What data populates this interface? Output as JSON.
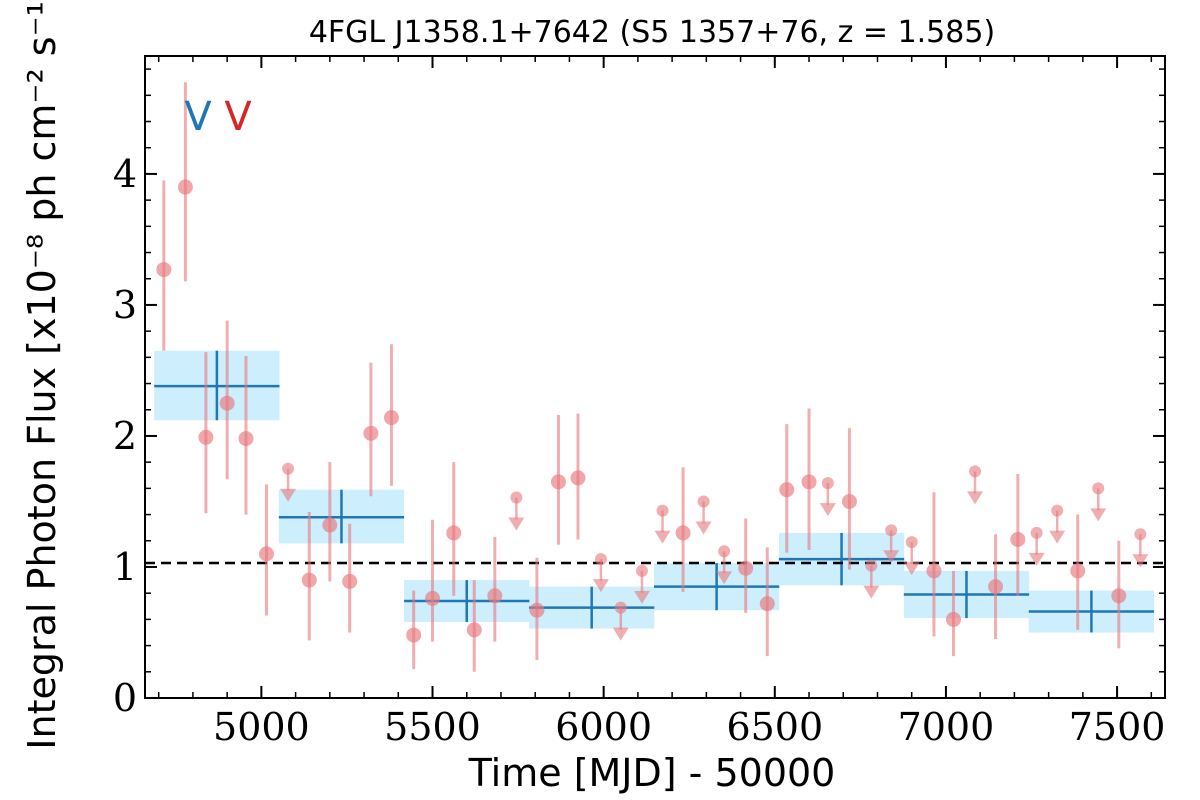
{
  "chart_data": {
    "type": "scatter",
    "title": "4FGL J1358.1+7642 (S5 1357+76, z = 1.585)",
    "xlabel": "Time [MJD] - 50000",
    "ylabel": "Integral Photon Flux [x10⁻⁸ ph cm⁻² s⁻¹]",
    "xlim": [
      4660,
      7640
    ],
    "ylim": [
      0,
      4.9
    ],
    "x_ticks": [
      5000,
      5500,
      6000,
      6500,
      7000,
      7500
    ],
    "y_ticks": [
      0,
      1,
      2,
      3,
      4
    ],
    "reference_line": {
      "value": 1.03,
      "style": "dashed",
      "color": "#000000"
    },
    "variability_flags": [
      {
        "text": "V",
        "color": "#1f77b4"
      },
      {
        "text": "V",
        "color": "#d62728"
      }
    ],
    "colors": {
      "long_bins": "#1f77b4",
      "long_bin_band": "#cdeefc",
      "short_bins": "#e8787c"
    },
    "long_bins": [
      {
        "x": 4870,
        "xerr": 183,
        "y": 2.38,
        "yerr": [
          0.26,
          0.27
        ]
      },
      {
        "x": 5234,
        "xerr": 183,
        "y": 1.38,
        "yerr": [
          0.2,
          0.21
        ]
      },
      {
        "x": 5600,
        "xerr": 183,
        "y": 0.74,
        "yerr": [
          0.16,
          0.16
        ]
      },
      {
        "x": 5965,
        "xerr": 183,
        "y": 0.69,
        "yerr": [
          0.16,
          0.16
        ]
      },
      {
        "x": 6330,
        "xerr": 183,
        "y": 0.85,
        "yerr": [
          0.18,
          0.18
        ]
      },
      {
        "x": 6695,
        "xerr": 183,
        "y": 1.06,
        "yerr": [
          0.2,
          0.2
        ]
      },
      {
        "x": 7060,
        "xerr": 183,
        "y": 0.79,
        "yerr": [
          0.18,
          0.18
        ]
      },
      {
        "x": 7425,
        "xerr": 183,
        "y": 0.66,
        "yerr": [
          0.16,
          0.16
        ]
      }
    ],
    "short_bins": [
      {
        "x": 4715,
        "y": 3.27,
        "yerr": [
          0.62,
          0.68
        ]
      },
      {
        "x": 4778,
        "y": 3.9,
        "yerr": [
          0.72,
          0.8
        ]
      },
      {
        "x": 4838,
        "y": 1.99,
        "yerr": [
          0.58,
          0.65
        ]
      },
      {
        "x": 4900,
        "y": 2.25,
        "yerr": [
          0.58,
          0.63
        ]
      },
      {
        "x": 4955,
        "y": 1.98,
        "yerr": [
          0.58,
          0.63
        ]
      },
      {
        "x": 5015,
        "y": 1.1,
        "yerr": [
          0.47,
          0.53
        ]
      },
      {
        "x": 5078,
        "y": 1.75,
        "ul": true
      },
      {
        "x": 5140,
        "y": 0.9,
        "yerr": [
          0.46,
          0.52
        ]
      },
      {
        "x": 5200,
        "y": 1.32,
        "yerr": [
          0.43,
          0.48
        ]
      },
      {
        "x": 5258,
        "y": 0.89,
        "yerr": [
          0.39,
          0.44
        ]
      },
      {
        "x": 5320,
        "y": 2.02,
        "yerr": [
          0.48,
          0.54
        ]
      },
      {
        "x": 5380,
        "y": 2.14,
        "yerr": [
          0.52,
          0.56
        ]
      },
      {
        "x": 5445,
        "y": 0.48,
        "yerr": [
          0.26,
          0.34
        ]
      },
      {
        "x": 5500,
        "y": 0.76,
        "yerr": [
          0.33,
          0.6
        ]
      },
      {
        "x": 5562,
        "y": 1.26,
        "yerr": [
          0.48,
          0.54
        ]
      },
      {
        "x": 5622,
        "y": 0.52,
        "yerr": [
          0.32,
          0.38
        ]
      },
      {
        "x": 5682,
        "y": 0.78,
        "yerr": [
          0.35,
          0.45
        ]
      },
      {
        "x": 5745,
        "y": 1.53,
        "ul": true
      },
      {
        "x": 5805,
        "y": 0.67,
        "yerr": [
          0.38,
          0.4
        ]
      },
      {
        "x": 5868,
        "y": 1.65,
        "yerr": [
          0.48,
          0.51
        ]
      },
      {
        "x": 5925,
        "y": 1.68,
        "yerr": [
          0.47,
          0.49
        ]
      },
      {
        "x": 5992,
        "y": 1.06,
        "ul": true
      },
      {
        "x": 6050,
        "y": 0.69,
        "ul": true
      },
      {
        "x": 6112,
        "y": 0.97,
        "ul": true
      },
      {
        "x": 6172,
        "y": 1.43,
        "ul": true
      },
      {
        "x": 6232,
        "y": 1.26,
        "yerr": [
          0.45,
          0.5
        ]
      },
      {
        "x": 6292,
        "y": 1.5,
        "ul": true
      },
      {
        "x": 6352,
        "y": 1.12,
        "ul": true
      },
      {
        "x": 6415,
        "y": 0.99,
        "yerr": [
          0.34,
          0.38
        ]
      },
      {
        "x": 6478,
        "y": 0.72,
        "yerr": [
          0.4,
          0.43
        ]
      },
      {
        "x": 6535,
        "y": 1.59,
        "yerr": [
          0.48,
          0.5
        ]
      },
      {
        "x": 6600,
        "y": 1.65,
        "yerr": [
          0.52,
          0.56
        ]
      },
      {
        "x": 6655,
        "y": 1.64,
        "ul": true
      },
      {
        "x": 6718,
        "y": 1.5,
        "yerr": [
          0.52,
          0.56
        ]
      },
      {
        "x": 6782,
        "y": 1.01,
        "ul": true
      },
      {
        "x": 6840,
        "y": 1.28,
        "ul": true
      },
      {
        "x": 6900,
        "y": 1.19,
        "ul": true
      },
      {
        "x": 6965,
        "y": 0.97,
        "yerr": [
          0.5,
          0.6
        ]
      },
      {
        "x": 7022,
        "y": 0.6,
        "yerr": [
          0.28,
          0.37
        ]
      },
      {
        "x": 7085,
        "y": 1.73,
        "ul": true
      },
      {
        "x": 7145,
        "y": 0.85,
        "yerr": [
          0.4,
          0.4
        ]
      },
      {
        "x": 7210,
        "y": 1.21,
        "yerr": [
          0.43,
          0.5
        ]
      },
      {
        "x": 7265,
        "y": 1.26,
        "ul": true
      },
      {
        "x": 7325,
        "y": 1.43,
        "ul": true
      },
      {
        "x": 7385,
        "y": 0.97,
        "yerr": [
          0.45,
          0.43
        ]
      },
      {
        "x": 7445,
        "y": 1.6,
        "ul": true
      },
      {
        "x": 7505,
        "y": 0.78,
        "yerr": [
          0.4,
          0.42
        ]
      },
      {
        "x": 7568,
        "y": 1.25,
        "ul": true
      }
    ]
  }
}
